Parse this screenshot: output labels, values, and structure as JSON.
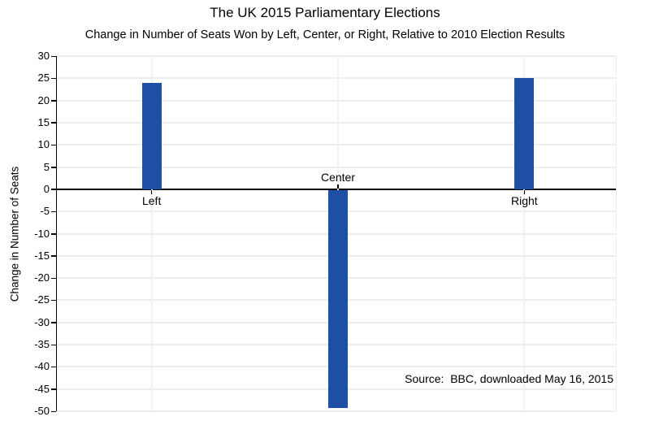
{
  "chart_data": {
    "type": "bar",
    "title": "The UK 2015 Parliamentary Elections",
    "subtitle": "Change in Number of Seats Won by Left, Center, or Right, Relative to 2010 Election Results",
    "categories": [
      "Left",
      "Center",
      "Right"
    ],
    "values": [
      24,
      -49,
      25
    ],
    "xlabel": "",
    "ylabel": "Change in Number of Seats",
    "ylim": [
      -50,
      30
    ],
    "ytick_step": 5,
    "grid": true,
    "legend": "none",
    "annotation": "Source:  BBC, downloaded May 16, 2015",
    "bar_color": "#1d4fa5",
    "gridline_color": "#ededed",
    "axis_color": "#000000"
  }
}
